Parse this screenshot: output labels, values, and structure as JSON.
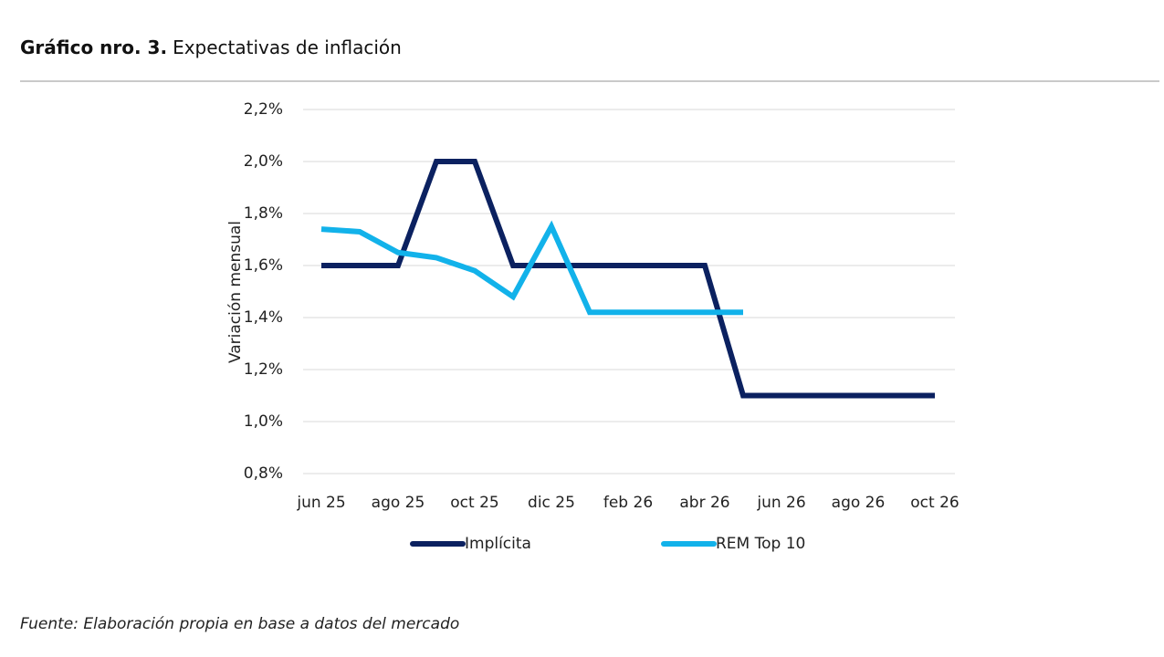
{
  "chart_data": {
    "type": "line",
    "title": "Gráfico nro. 3.",
    "subtitle": "Expectativas de inflación",
    "y_label": "Variación mensual",
    "source": "Fuente: Elaboración propia en base a datos del mercado",
    "categories": [
      "jun 25",
      null,
      "ago 25",
      null,
      "oct 25",
      null,
      "dic 25",
      null,
      "feb 26",
      null,
      "abr 26",
      null,
      "jun 26",
      null,
      "ago 26",
      null,
      "oct 26"
    ],
    "series": [
      {
        "name": "Implícita",
        "color": "#0b2160",
        "values": [
          1.6,
          1.6,
          1.6,
          2.0,
          2.0,
          1.6,
          1.6,
          1.6,
          1.6,
          1.6,
          1.6,
          1.1,
          1.1,
          1.1,
          1.1,
          1.1,
          1.1
        ]
      },
      {
        "name": "REM Top 10",
        "color": "#12b2ea",
        "values": [
          1.74,
          1.73,
          1.65,
          1.63,
          1.58,
          1.48,
          1.75,
          1.42,
          1.42,
          1.42,
          1.42,
          1.42,
          null,
          null,
          null,
          null,
          null
        ]
      }
    ],
    "ylim": [
      0.8,
      2.2
    ],
    "yticks": [
      {
        "value": 0.8,
        "label": "0,8%"
      },
      {
        "value": 1.0,
        "label": "1,0%"
      },
      {
        "value": 1.2,
        "label": "1,2%"
      },
      {
        "value": 1.4,
        "label": "1,4%"
      },
      {
        "value": 1.6,
        "label": "1,6%"
      },
      {
        "value": 1.8,
        "label": "1,8%"
      },
      {
        "value": 2.0,
        "label": "2,0%"
      },
      {
        "value": 2.2,
        "label": "2,2%"
      }
    ],
    "grid": true,
    "legend": "bottom"
  }
}
